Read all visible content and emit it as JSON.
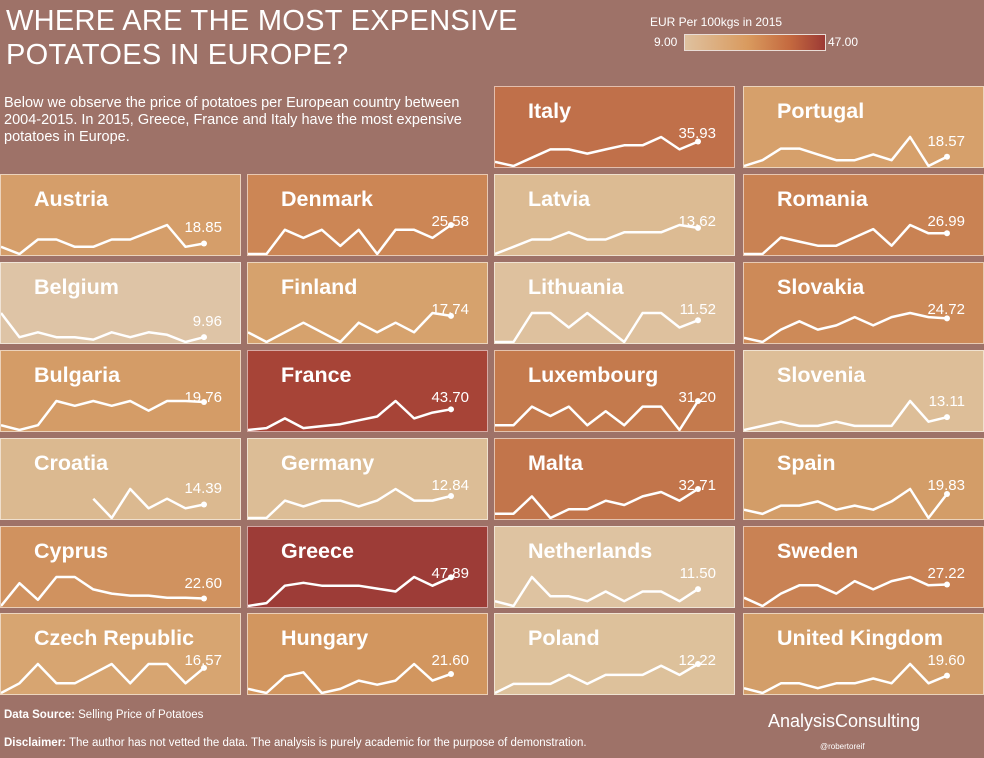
{
  "title": "WHERE ARE THE MOST EXPENSIVE POTATOES IN EUROPE?",
  "intro": "Below we observe the price of potatoes per European country between 2004-2015. In 2015, Greece, France and Italy have the most expensive potatoes in Europe.",
  "legend": {
    "title": "EUR Per 100kgs in 2015",
    "min_label": "9.00",
    "max_label": "47.00"
  },
  "footer": {
    "source_label": "Data Source:",
    "source_text": " Selling Price of Potatoes",
    "disclaimer_label": "Disclaimer:",
    "disclaimer_text": " The author has not vetted the data. The analysis is purely academic for the purpose of demonstration."
  },
  "brand": "AnalysisConsulting",
  "handle": "@robertoreif",
  "chart_data": {
    "type": "line",
    "x": [
      2004,
      2005,
      2006,
      2007,
      2008,
      2009,
      2010,
      2011,
      2012,
      2013,
      2014,
      2015
    ],
    "color_scale": {
      "min": 9.0,
      "max": 47.0,
      "colors": [
        "#dfc19f",
        "#d99a5e",
        "#c4693f",
        "#9c3a35"
      ]
    },
    "series": [
      {
        "name": "Italy",
        "label": "35.93",
        "value": 35.93,
        "color": "#c0704a",
        "values": [
          31,
          30,
          32,
          34,
          34,
          33,
          34,
          35,
          35,
          37,
          34,
          35.9
        ]
      },
      {
        "name": "Portugal",
        "label": "18.57",
        "value": 18.57,
        "color": "#d6a06b",
        "values": [
          17,
          18,
          20,
          20,
          19,
          18,
          18,
          19,
          18,
          22,
          17,
          18.6
        ]
      },
      {
        "name": "Austria",
        "label": "18.85",
        "value": 18.85,
        "color": "#d59e6a",
        "values": [
          18,
          16,
          20,
          20,
          18,
          18,
          20,
          20,
          22,
          24,
          18,
          18.9
        ]
      },
      {
        "name": "Denmark",
        "label": "25.58",
        "value": 25.58,
        "color": "#cc8655",
        "values": [
          22,
          22,
          25,
          24,
          25,
          23,
          25,
          22,
          25,
          25,
          24,
          25.6
        ]
      },
      {
        "name": "Latvia",
        "label": "13.62",
        "value": 13.62,
        "color": "#dcbb93",
        "values": [
          10,
          11,
          12,
          12,
          13,
          12,
          12,
          13,
          13,
          13,
          14,
          13.6
        ]
      },
      {
        "name": "Romania",
        "label": "26.99",
        "value": 26.99,
        "color": "#c98253",
        "values": [
          22,
          22,
          26,
          25,
          24,
          24,
          26,
          28,
          24,
          29,
          27,
          27
        ]
      },
      {
        "name": "Belgium",
        "label": "9.96",
        "value": 9.96,
        "color": "#dec4a6",
        "values": [
          20,
          10,
          12,
          10,
          10,
          9,
          12,
          10,
          12,
          11,
          8,
          10
        ]
      },
      {
        "name": "Finland",
        "label": "17.74",
        "value": 17.74,
        "color": "#d6a26d",
        "values": [
          16,
          15,
          16,
          17,
          16,
          15,
          17,
          16,
          17,
          16,
          18,
          17.7
        ]
      },
      {
        "name": "Lithuania",
        "label": "11.52",
        "value": 11.52,
        "color": "#dec19e",
        "values": [
          10,
          10,
          12,
          12,
          11,
          12,
          11,
          10,
          12,
          12,
          11,
          11.5
        ]
      },
      {
        "name": "Slovakia",
        "label": "24.72",
        "value": 24.72,
        "color": "#cd8a58",
        "values": [
          20,
          19,
          22,
          24,
          22,
          23,
          25,
          23,
          25,
          26,
          25,
          24.7
        ]
      },
      {
        "name": "Bulgaria",
        "label": "19.76",
        "value": 19.76,
        "color": "#d49c67",
        "values": [
          15,
          14,
          15,
          20,
          19,
          20,
          19,
          20,
          18,
          20,
          20,
          19.8
        ]
      },
      {
        "name": "France",
        "label": "43.70",
        "value": 43.7,
        "color": "#a74437",
        "values": [
          33,
          34,
          39,
          34,
          35,
          36,
          38,
          40,
          48,
          39,
          42,
          43.7
        ]
      },
      {
        "name": "Luxembourg",
        "label": "31.20",
        "value": 31.2,
        "color": "#c47a4d",
        "values": [
          26,
          26,
          30,
          28,
          30,
          26,
          29,
          26,
          30,
          30,
          25,
          31.2
        ]
      },
      {
        "name": "Slovenia",
        "label": "13.11",
        "value": 13.11,
        "color": "#ddbe98",
        "values": [
          10,
          11,
          12,
          11,
          11,
          12,
          11,
          11,
          11,
          17,
          12,
          13.1
        ]
      },
      {
        "name": "Croatia",
        "label": "14.39",
        "value": 14.39,
        "color": "#dbb990",
        "values": [
          null,
          null,
          null,
          null,
          null,
          15,
          13,
          16,
          14,
          15,
          14,
          14.4
        ]
      },
      {
        "name": "Germany",
        "label": "12.84",
        "value": 12.84,
        "color": "#dcbd96",
        "values": [
          9,
          9,
          12,
          11,
          12,
          12,
          11,
          12,
          14,
          12,
          12,
          12.8
        ]
      },
      {
        "name": "Malta",
        "label": "32.71",
        "value": 32.71,
        "color": "#c2754b",
        "values": [
          27,
          27,
          31,
          26,
          28,
          28,
          30,
          29,
          31,
          32,
          30,
          32.7
        ]
      },
      {
        "name": "Spain",
        "label": "19.83",
        "value": 19.83,
        "color": "#d39d68",
        "values": [
          16,
          15,
          17,
          17,
          18,
          16,
          17,
          16,
          18,
          21,
          14,
          19.8
        ]
      },
      {
        "name": "Cyprus",
        "label": "22.60",
        "value": 22.6,
        "color": "#d0925f",
        "values": [
          19,
          30,
          22,
          33,
          33,
          27,
          25,
          24,
          24,
          23,
          23,
          22.6
        ]
      },
      {
        "name": "Greece",
        "label": "47.89",
        "value": 47.89,
        "color": "#9d3c37",
        "values": [
          38,
          39,
          45,
          46,
          45,
          45,
          45,
          44,
          43,
          48,
          45,
          47.9
        ]
      },
      {
        "name": "Netherlands",
        "label": "11.50",
        "value": 11.5,
        "color": "#dec3a1",
        "values": [
          9,
          8,
          14,
          10,
          10,
          9,
          11,
          9,
          11,
          11,
          9,
          11.5
        ]
      },
      {
        "name": "Sweden",
        "label": "27.22",
        "value": 27.22,
        "color": "#c98254",
        "values": [
          24,
          22,
          25,
          27,
          27,
          25,
          28,
          26,
          28,
          29,
          27,
          27.2
        ]
      },
      {
        "name": "Czech Republic",
        "label": "16.57",
        "value": 16.57,
        "color": "#d7a571",
        "values": [
          14,
          15,
          17,
          15,
          15,
          16,
          17,
          15,
          17,
          17,
          15,
          16.6
        ]
      },
      {
        "name": "Hungary",
        "label": "21.60",
        "value": 21.6,
        "color": "#d2965f",
        "values": [
          18,
          17,
          21,
          22,
          17,
          18,
          20,
          19,
          20,
          24,
          20,
          21.6
        ]
      },
      {
        "name": "Poland",
        "label": "12.22",
        "value": 12.22,
        "color": "#ddc19b",
        "values": [
          9,
          10,
          10,
          10,
          11,
          10,
          11,
          11,
          11,
          12,
          11,
          12.2
        ]
      },
      {
        "name": "United Kingdom",
        "label": "19.60",
        "value": 19.6,
        "color": "#d39e69",
        "values": [
          17,
          16,
          18,
          18,
          17,
          18,
          18,
          19,
          18,
          22,
          18,
          19.6
        ]
      }
    ]
  }
}
